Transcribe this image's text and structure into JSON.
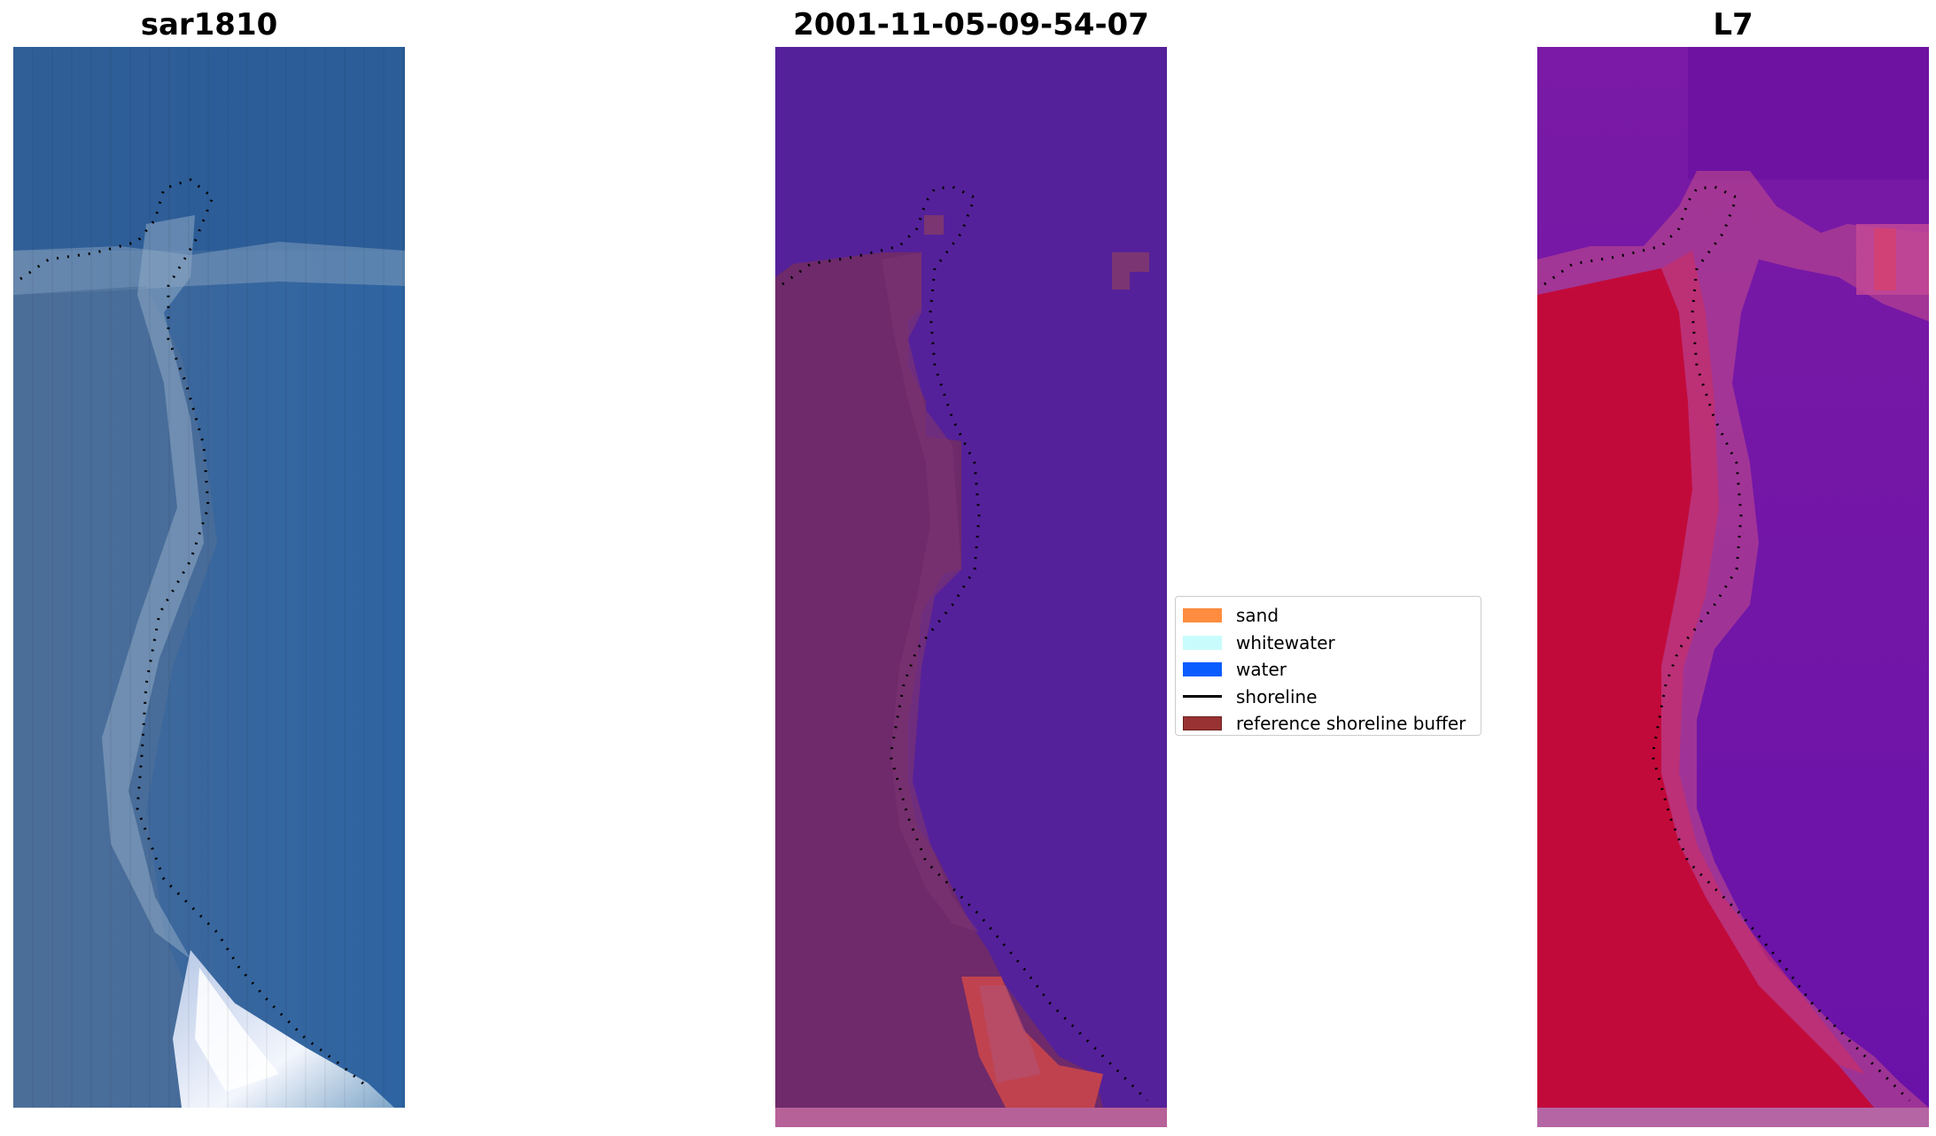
{
  "panels": [
    {
      "title": "sar1810"
    },
    {
      "title": "2001-11-05-09-54-07"
    },
    {
      "title": "L7"
    }
  ],
  "legend": {
    "items": [
      {
        "label": "sand",
        "color": "#ff8c3f",
        "kind": "patch"
      },
      {
        "label": "whitewater",
        "color": "#c8fcfc",
        "kind": "patch"
      },
      {
        "label": "water",
        "color": "#0b5cff",
        "kind": "patch"
      },
      {
        "label": "shoreline",
        "color": "#000000",
        "kind": "line"
      },
      {
        "label": "reference shoreline buffer",
        "color": "#993333",
        "kind": "patch"
      }
    ]
  },
  "colors": {
    "rgb_water": "#2d5f9a",
    "rgb_land": "#5b7fa8",
    "rgb_foam": "#eef2fb",
    "class_water": "#55219a",
    "class_land": "#6e2a6a",
    "class_sand": "#c0424e",
    "class_strip": "#b66198",
    "falsecolor_water": "#7213a3",
    "falsecolor_land": "#c20a3a",
    "falsecolor_strip": "#b565a4"
  }
}
